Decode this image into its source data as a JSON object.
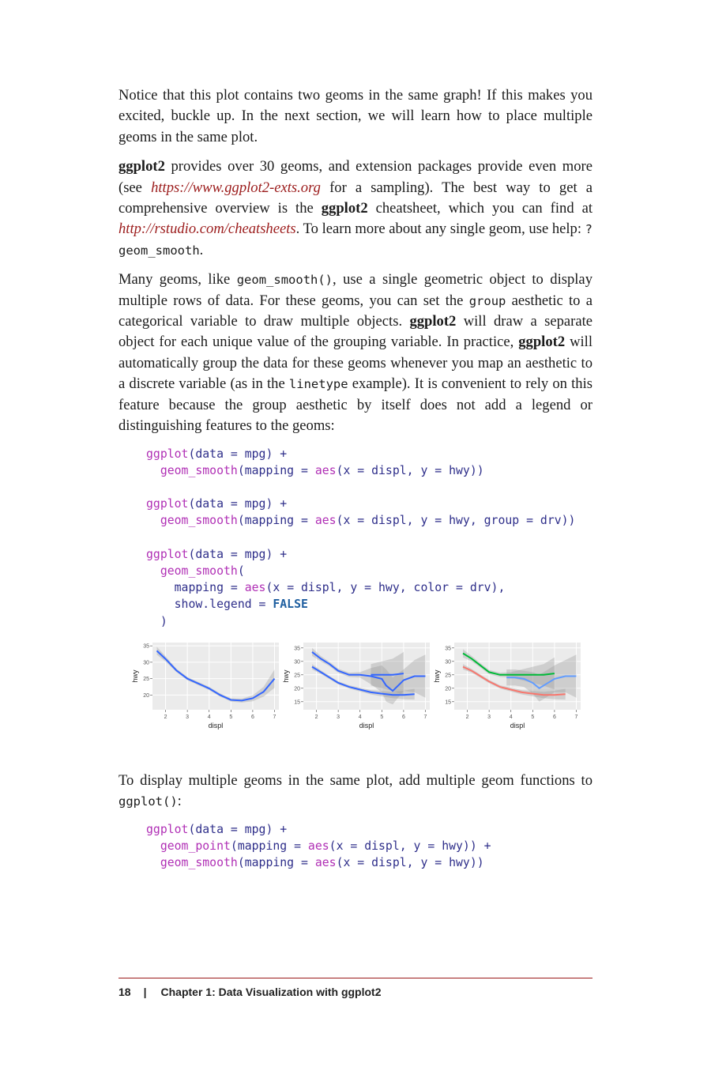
{
  "paragraphs": {
    "p1": "Notice that this plot contains two geoms in the same graph! If this makes you excited, buckle up. In the next section, we will learn how to place multiple geoms in the same plot.",
    "p2": {
      "pkg": "ggplot2",
      "t1": " provides over 30 geoms, and extension packages provide even more (see ",
      "link1": "https://www.ggplot2-exts.org",
      "t2": " for a sampling). The best way to get a comprehensive overview is the ",
      "pkg2": "ggplot2",
      "t3": " cheatsheet, which you can find at ",
      "link2": "http://rstudio.com/cheatsheets",
      "t4": ". To learn more about any single geom, use help: ",
      "code": "?geom_smooth",
      "t5": "."
    },
    "p3": {
      "t1": "Many geoms, like ",
      "code1": "geom_smooth()",
      "t2": ", use a single geometric object to display multiple rows of data. For these geoms, you can set the ",
      "code2": "group",
      "t3": " aesthetic to a categorical variable to draw multiple objects. ",
      "pkg": "ggplot2",
      "t4": " will draw a separate object for each unique value of the grouping variable. In practice, ",
      "pkg2": "ggplot2",
      "t5": " will automatically group the data for these geoms whenever you map an aesthetic to a discrete variable (as in the ",
      "code3": "linetype",
      "t6": " example). It is convenient to rely on this feature because the group aesthetic by itself does not add a legend or distinguishing features to the geoms:"
    },
    "p4": {
      "t1": "To display multiple geoms in the same plot, add multiple geom functions to ",
      "code": "ggplot()",
      "t2": ":"
    }
  },
  "code1": {
    "l1_fn": "ggplot",
    "l1_rest": "(data = mpg) +",
    "l2_fn": "geom_smooth",
    "l2_a": "(mapping = ",
    "l2_fn2": "aes",
    "l2_rest": "(x = displ, y = hwy))",
    "l4_fn": "ggplot",
    "l4_rest": "(data = mpg) +",
    "l5_fn": "geom_smooth",
    "l5_a": "(mapping = ",
    "l5_fn2": "aes",
    "l5_rest": "(x = displ, y = hwy, group = drv))",
    "l7_fn": "ggplot",
    "l7_rest": "(data = mpg) +",
    "l8_fn": "geom_smooth",
    "l8_rest": "(",
    "l9_a": "mapping = ",
    "l9_fn": "aes",
    "l9_rest": "(x = displ, y = hwy, color = drv),",
    "l10_a": "show.legend = ",
    "l10_kw": "FALSE",
    "l11": ")"
  },
  "code2": {
    "l1_fn": "ggplot",
    "l1_rest": "(data = mpg) +",
    "l2_fn": "geom_point",
    "l2_a": "(mapping = ",
    "l2_fn2": "aes",
    "l2_rest": "(x = displ, y = hwy)) +",
    "l3_fn": "geom_smooth",
    "l3_a": "(mapping = ",
    "l3_fn2": "aes",
    "l3_rest": "(x = displ, y = hwy))"
  },
  "chart_data": [
    {
      "type": "line",
      "xlabel": "displ",
      "ylabel": "hwy",
      "xticks": [
        "2",
        "3",
        "4",
        "5",
        "6",
        "7"
      ],
      "yticks": [
        "20",
        "25",
        "30",
        "35"
      ],
      "xlim": [
        1.4,
        7.2
      ],
      "ylim": [
        15.5,
        36
      ],
      "series": [
        {
          "color": "#3366ff",
          "x": [
            1.6,
            2.0,
            2.5,
            3.0,
            3.5,
            4.0,
            4.5,
            5.0,
            5.5,
            6.0,
            6.5,
            7.0
          ],
          "y": [
            33.5,
            31,
            27.5,
            25,
            23.5,
            22,
            20,
            18.5,
            18.3,
            19,
            21,
            25
          ],
          "band": [
            1.2,
            0.8,
            0.5,
            0.5,
            0.5,
            0.5,
            0.5,
            0.5,
            0.6,
            0.9,
            1.5,
            2.8
          ]
        }
      ]
    },
    {
      "type": "line",
      "xlabel": "displ",
      "ylabel": "hwy",
      "xticks": [
        "2",
        "3",
        "4",
        "5",
        "6",
        "7"
      ],
      "yticks": [
        "15",
        "20",
        "25",
        "30",
        "35"
      ],
      "xlim": [
        1.4,
        7.2
      ],
      "ylim": [
        12,
        37
      ],
      "series": [
        {
          "color": "#3366ff",
          "x": [
            1.8,
            2.2,
            2.6,
            3.0,
            3.5,
            4.0,
            4.5,
            5.0,
            5.5,
            6.0,
            6.5
          ],
          "y": [
            28,
            26,
            24,
            22,
            20.5,
            19.5,
            18.5,
            18,
            17.5,
            17.5,
            17.8
          ],
          "band": [
            1,
            0.7,
            0.6,
            0.6,
            0.6,
            0.7,
            0.8,
            1,
            1.2,
            1.6,
            2
          ]
        },
        {
          "color": "#3366ff",
          "x": [
            1.8,
            2.2,
            2.6,
            3.0,
            3.5,
            4.0,
            4.5,
            5.0,
            5.2,
            5.5,
            6.0,
            6.5,
            7.0
          ],
          "y": [
            33.5,
            31,
            29,
            26.5,
            25,
            25,
            24.5,
            23.5,
            21,
            19,
            23,
            24.5,
            24.5
          ],
          "band": [
            1.5,
            1,
            0.8,
            0.8,
            0.8,
            1,
            3,
            5,
            6,
            5,
            4,
            6,
            8
          ]
        },
        {
          "color": "#3366ff",
          "x": [
            4.5,
            5.0,
            5.5,
            6.0
          ],
          "y": [
            25,
            25,
            25,
            25.5
          ],
          "band": [
            4,
            5,
            6,
            8
          ]
        }
      ]
    },
    {
      "type": "line",
      "xlabel": "displ",
      "ylabel": "hwy",
      "xticks": [
        "2",
        "3",
        "4",
        "5",
        "6",
        "7"
      ],
      "yticks": [
        "15",
        "20",
        "25",
        "30",
        "35"
      ],
      "xlim": [
        1.4,
        7.2
      ],
      "ylim": [
        12,
        37
      ],
      "series": [
        {
          "color": "#f8766d",
          "x": [
            1.8,
            2.2,
            2.6,
            3.0,
            3.5,
            4.0,
            4.5,
            5.0,
            5.5,
            6.0,
            6.5
          ],
          "y": [
            28,
            26.5,
            24.5,
            22.5,
            20.5,
            19.5,
            18.5,
            18,
            17.5,
            17.5,
            17.8
          ],
          "band": [
            1,
            0.7,
            0.6,
            0.6,
            0.6,
            0.7,
            0.8,
            1,
            1.2,
            1.6,
            2
          ]
        },
        {
          "color": "#00ba38",
          "x": [
            1.8,
            2.2,
            2.6,
            3.0,
            3.5,
            4.0,
            4.5,
            5.0,
            5.5,
            6.0
          ],
          "y": [
            33,
            31,
            28.5,
            26,
            25,
            25,
            25,
            25,
            25,
            25.5
          ],
          "band": [
            1.5,
            1,
            0.8,
            0.8,
            0.8,
            1,
            2,
            3,
            4,
            6
          ]
        },
        {
          "color": "#619cff",
          "x": [
            3.8,
            4.2,
            4.6,
            5.0,
            5.3,
            5.6,
            6.0,
            6.5,
            7.0
          ],
          "y": [
            24,
            24,
            23.5,
            22,
            20,
            21.5,
            23.5,
            24.5,
            24.5
          ],
          "band": [
            3,
            3,
            3,
            4,
            5,
            5,
            5,
            6,
            8
          ]
        }
      ]
    }
  ],
  "footer": {
    "page_number": "18",
    "separator": "|",
    "chapter": "Chapter 1: Data Visualization with ggplot2"
  }
}
